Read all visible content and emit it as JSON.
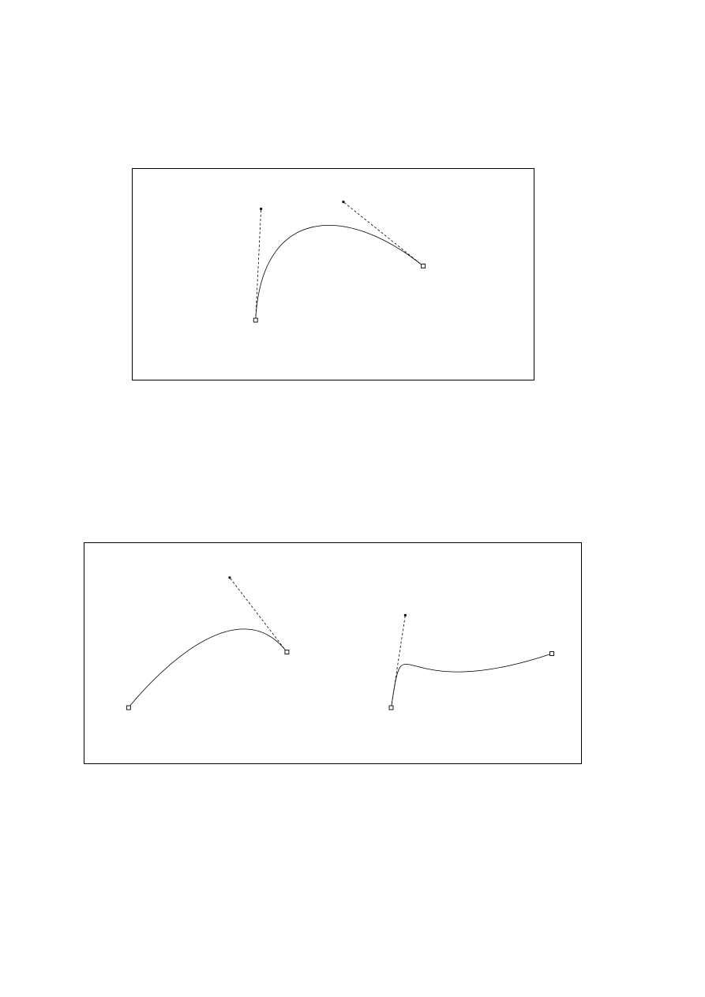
{
  "figures": [
    {
      "curves": [
        {
          "start_anchor": [
            0,
            0
          ],
          "control_1": [
            7,
            142
          ],
          "control_2": [
            112,
            151
          ],
          "end_anchor": [
            214,
            69
          ]
        }
      ]
    },
    {
      "curves": [
        {
          "start_anchor": [
            0,
            0
          ],
          "control_1": [
            0,
            0
          ],
          "control_2": [
            129,
            166
          ],
          "end_anchor": [
            202,
            71
          ]
        },
        {
          "start_anchor": [
            0,
            0
          ],
          "control_1": [
            18,
            118
          ],
          "control_2": [
            0,
            0
          ],
          "end_anchor": [
            205,
            69
          ]
        }
      ]
    }
  ],
  "colors": {
    "stroke": "#000000",
    "background": "#ffffff"
  }
}
